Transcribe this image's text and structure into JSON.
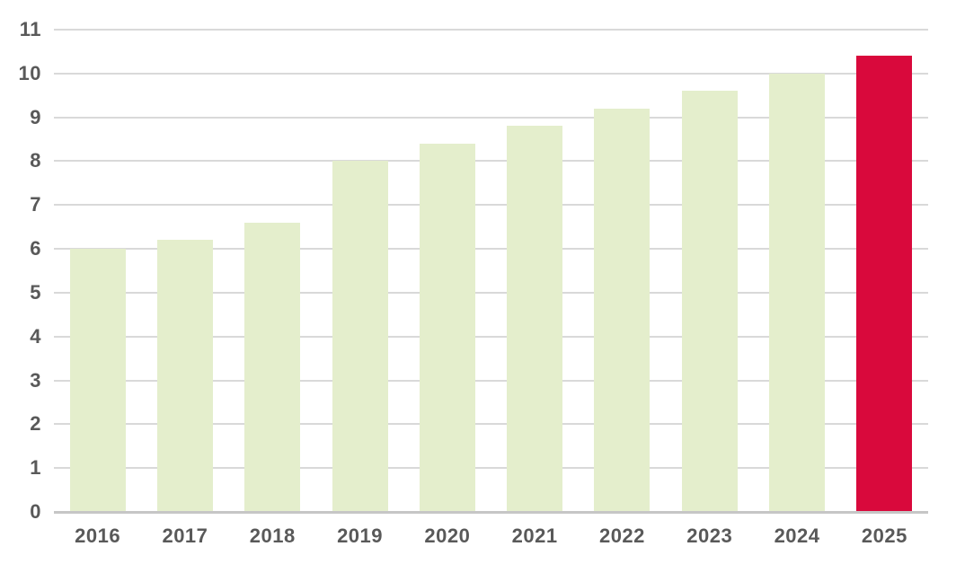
{
  "chart_data": {
    "type": "bar",
    "title": "",
    "xlabel": "",
    "ylabel": "",
    "categories": [
      "2016",
      "2017",
      "2018",
      "2019",
      "2020",
      "2021",
      "2022",
      "2023",
      "2024",
      "2025"
    ],
    "values": [
      6.0,
      6.2,
      6.6,
      8.0,
      8.4,
      8.8,
      9.2,
      9.6,
      10.0,
      10.4
    ],
    "highlight_index": 9,
    "y_ticks": [
      0,
      1,
      2,
      3,
      4,
      5,
      6,
      7,
      8,
      9,
      10,
      11
    ],
    "ylim": [
      0,
      11
    ],
    "grid": "horizontal",
    "legend": "none",
    "colors": {
      "bar_default": "#e4eecc",
      "bar_highlight": "#d9093c",
      "axis_label": "#595959",
      "gridline": "#d9d9d9",
      "baseline": "#c6c6c6",
      "background": "#ffffff"
    }
  }
}
